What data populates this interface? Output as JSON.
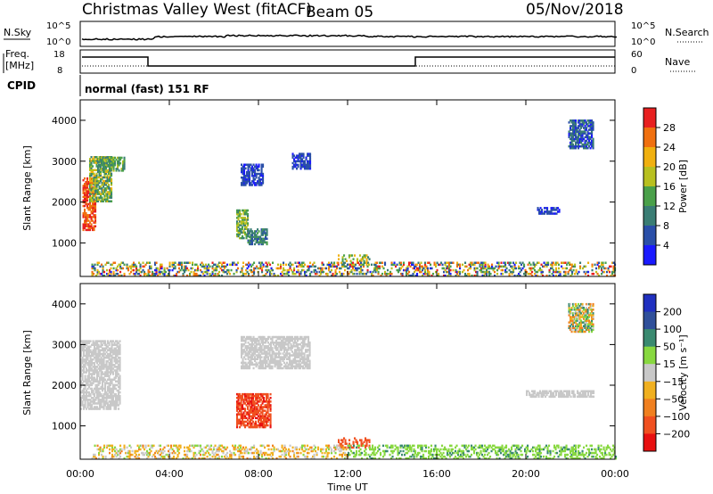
{
  "header": {
    "station": "Christmas Valley West (fitACF)",
    "beam": "Beam 05",
    "date": "05/Nov/2018"
  },
  "top_panels": {
    "nsky_label": "N.Sky",
    "nsearch_label": "N.Search",
    "freq_label_1": "Freq.",
    "freq_label_2": "[MHz]",
    "nave_label": "Nave",
    "cpid_label": "CPID",
    "cpid_value": "normal (fast) 151 RF",
    "left_ticks_noise": [
      "10^5",
      "10^0"
    ],
    "right_ticks_noise": [
      "10^5",
      "10^0"
    ],
    "left_ticks_freq": [
      "18",
      "8"
    ],
    "right_ticks_nave": [
      "60",
      "0"
    ]
  },
  "colors": {
    "power": [
      "#1a1aff",
      "#2a4fa8",
      "#3a7d74",
      "#4aa04a",
      "#b8c020",
      "#f0b010",
      "#f07010",
      "#e82020"
    ],
    "velocity": [
      "#2030c0",
      "#30509a",
      "#3a8a70",
      "#88d840",
      "#c8c8c8",
      "#f0b020",
      "#f08020",
      "#f05020",
      "#e81010"
    ]
  },
  "chart_data": [
    {
      "type": "heatmap",
      "name": "power",
      "ylabel": "Slant Range [km]",
      "xlabel": "",
      "x_ticks": [
        "00:00",
        "04:00",
        "08:00",
        "12:00",
        "16:00",
        "20:00",
        "00:00"
      ],
      "y_ticks": [
        "1000",
        "2000",
        "3000",
        "4000"
      ],
      "y_range_km": [
        180,
        4500
      ],
      "colorbar_label": "Power [dB]",
      "colorbar_ticks": [
        "4",
        "8",
        "12",
        "16",
        "20",
        "24",
        "28"
      ],
      "colorbar_range": [
        0,
        32
      ],
      "regions": [
        {
          "t0": 0.1,
          "t1": 0.7,
          "r0": 1300,
          "r1": 2600,
          "v0": 24,
          "v1": 32
        },
        {
          "t0": 0.4,
          "t1": 1.4,
          "r0": 2000,
          "r1": 3100,
          "v0": 8,
          "v1": 22
        },
        {
          "t0": 0.8,
          "t1": 2.0,
          "r0": 2750,
          "r1": 3100,
          "v0": 8,
          "v1": 18
        },
        {
          "t0": 7.0,
          "t1": 7.5,
          "r0": 1100,
          "r1": 1800,
          "v0": 10,
          "v1": 20
        },
        {
          "t0": 7.5,
          "t1": 8.4,
          "r0": 950,
          "r1": 1350,
          "v0": 6,
          "v1": 14
        },
        {
          "t0": 7.2,
          "t1": 8.2,
          "r0": 2400,
          "r1": 2900,
          "v0": 2,
          "v1": 8
        },
        {
          "t0": 9.5,
          "t1": 10.3,
          "r0": 2800,
          "r1": 3200,
          "v0": 2,
          "v1": 8
        },
        {
          "t0": 11.5,
          "t1": 13.0,
          "r0": 450,
          "r1": 720,
          "v0": 8,
          "v1": 24
        },
        {
          "t0": 21.9,
          "t1": 23.0,
          "r0": 3300,
          "r1": 4000,
          "v0": 2,
          "v1": 12
        },
        {
          "t0": 20.5,
          "t1": 21.5,
          "r0": 1700,
          "r1": 1850,
          "v0": 2,
          "v1": 8
        },
        {
          "t0": 0.5,
          "t1": 24.0,
          "r0": 180,
          "r1": 500,
          "v0": 2,
          "v1": 30
        }
      ]
    },
    {
      "type": "heatmap",
      "name": "velocity",
      "ylabel": "Slant Range [km]",
      "xlabel": "Time UT",
      "x_ticks": [
        "00:00",
        "04:00",
        "08:00",
        "12:00",
        "16:00",
        "20:00",
        "00:00"
      ],
      "y_ticks": [
        "1000",
        "2000",
        "3000",
        "4000"
      ],
      "y_range_km": [
        180,
        4500
      ],
      "colorbar_label": "Velocity [m s⁻¹]",
      "colorbar_ticks": [
        "200",
        "100",
        "50",
        "15",
        "-15",
        "-50",
        "-100",
        "-200"
      ],
      "colorbar_range": [
        -250,
        250
      ],
      "regions": [
        {
          "t0": 0.0,
          "t1": 1.8,
          "r0": 1400,
          "r1": 3100,
          "v0": -10,
          "v1": 10
        },
        {
          "t0": 7.0,
          "t1": 8.5,
          "r0": 950,
          "r1": 1800,
          "v0": -220,
          "v1": -140
        },
        {
          "t0": 11.5,
          "t1": 13.0,
          "r0": 450,
          "r1": 720,
          "v0": -200,
          "v1": -150
        },
        {
          "t0": 7.2,
          "t1": 10.3,
          "r0": 2400,
          "r1": 3200,
          "v0": -10,
          "v1": 10
        },
        {
          "t0": 21.9,
          "t1": 23.0,
          "r0": 3300,
          "r1": 4000,
          "v0": -80,
          "v1": 80
        },
        {
          "t0": 20.0,
          "t1": 23.0,
          "r0": 1700,
          "r1": 1850,
          "v0": -10,
          "v1": 10
        },
        {
          "t0": 0.5,
          "t1": 12.0,
          "r0": 180,
          "r1": 500,
          "v0": -60,
          "v1": 30
        },
        {
          "t0": 12.0,
          "t1": 24.0,
          "r0": 180,
          "r1": 500,
          "v0": 15,
          "v1": 60
        }
      ]
    }
  ]
}
